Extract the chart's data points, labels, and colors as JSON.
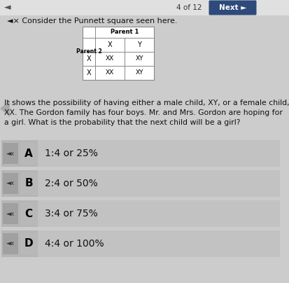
{
  "bg_color": "#cccccc",
  "header_text": "4 of 12",
  "next_btn_color": "#2d4a7a",
  "next_btn_text": "Next ►",
  "question_prefix": "◄× Consider the Punnett square seen here.",
  "body_text_lines": [
    "It shows the possibility of having either a male child, XY, or a female child,",
    "XX. The Gordon family has four boys. Mr. and Mrs. Gordon are hoping for",
    "a girl. What is the probability that the next child will be a girl?"
  ],
  "punnett": {
    "parent1_label": "Parent 1",
    "parent2_label": "Parent 2",
    "col_headers": [
      "X",
      "Y"
    ],
    "row_headers": [
      "X",
      "X"
    ],
    "cells": [
      [
        "XX",
        "XY"
      ],
      [
        "XX",
        "XY"
      ]
    ]
  },
  "options": [
    {
      "letter": "A",
      "text": "1:4 or 25%"
    },
    {
      "letter": "B",
      "text": "2:4 or 50%"
    },
    {
      "letter": "C",
      "text": "3:4 or 75%"
    },
    {
      "letter": "D",
      "text": "4:4 or 100%"
    }
  ],
  "option_bg": "#c2c2c2",
  "option_left_bg": "#b5b5b5",
  "speaker_text": "◄x",
  "table_bg": "#ffffff",
  "fig_w": 4.14,
  "fig_h": 4.04,
  "dpi": 100
}
